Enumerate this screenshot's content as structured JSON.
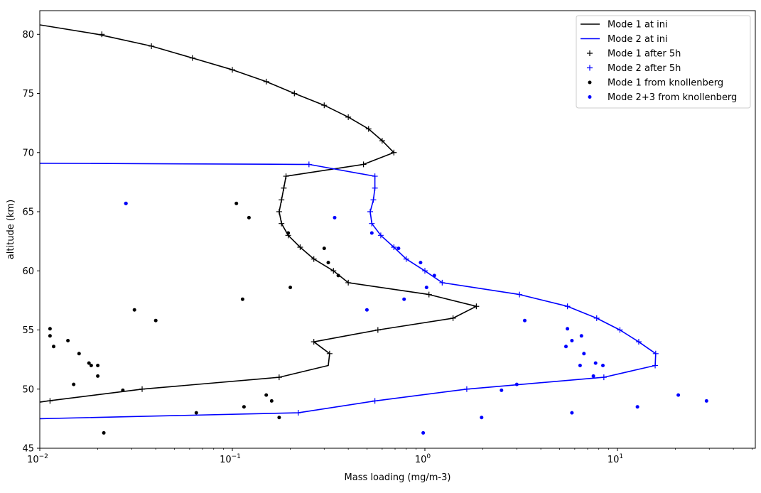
{
  "chart_data": {
    "type": "line",
    "xlabel": "Mass loading (mg/m-3)",
    "ylabel": "altitude (km)",
    "xscale": "log",
    "xlim": [
      0.01,
      52
    ],
    "ylim": [
      45,
      82
    ],
    "x_ticks": [
      {
        "value": 0.01,
        "base": "10",
        "exp": "−2"
      },
      {
        "value": 0.1,
        "base": "10",
        "exp": "−1"
      },
      {
        "value": 1,
        "base": "10",
        "exp": "0"
      },
      {
        "value": 10,
        "base": "10",
        "exp": "1"
      }
    ],
    "y_ticks": [
      45,
      50,
      55,
      60,
      65,
      70,
      75,
      80
    ],
    "grid": false,
    "legend_position": "top-right",
    "series": [
      {
        "name": "Mode 1 at ini",
        "kind": "line",
        "color": "#000000",
        "points": [
          [
            0.01,
            80.8
          ],
          [
            0.02,
            80
          ],
          [
            0.038,
            79
          ],
          [
            0.062,
            78
          ],
          [
            0.1,
            77
          ],
          [
            0.15,
            76
          ],
          [
            0.21,
            75
          ],
          [
            0.3,
            74
          ],
          [
            0.4,
            73
          ],
          [
            0.51,
            72
          ],
          [
            0.6,
            71
          ],
          [
            0.69,
            70
          ],
          [
            0.48,
            69
          ],
          [
            0.19,
            68
          ],
          [
            0.185,
            67
          ],
          [
            0.18,
            66
          ],
          [
            0.175,
            65
          ],
          [
            0.18,
            64
          ],
          [
            0.195,
            63
          ],
          [
            0.225,
            62
          ],
          [
            0.265,
            61
          ],
          [
            0.335,
            60
          ],
          [
            0.4,
            59
          ],
          [
            1.05,
            58
          ],
          [
            1.85,
            57
          ],
          [
            1.4,
            56
          ],
          [
            0.57,
            55
          ],
          [
            0.265,
            54
          ],
          [
            0.32,
            53
          ],
          [
            0.315,
            52
          ],
          [
            0.175,
            51
          ],
          [
            0.034,
            50
          ],
          [
            0.011,
            49
          ],
          [
            0.01,
            48.9
          ]
        ]
      },
      {
        "name": "Mode 2 at ini",
        "kind": "line",
        "color": "#0000ff",
        "points": [
          [
            0.01,
            69.1
          ],
          [
            0.22,
            69
          ],
          [
            0.25,
            69
          ],
          [
            0.55,
            68
          ],
          [
            0.55,
            67
          ],
          [
            0.54,
            66
          ],
          [
            0.52,
            65
          ],
          [
            0.53,
            64
          ],
          [
            0.59,
            63
          ],
          [
            0.69,
            62
          ],
          [
            0.8,
            61
          ],
          [
            1.0,
            60
          ],
          [
            1.23,
            59
          ],
          [
            3.1,
            58
          ],
          [
            5.5,
            57
          ],
          [
            7.8,
            56
          ],
          [
            10.3,
            55
          ],
          [
            12.9,
            54
          ],
          [
            15.8,
            53
          ],
          [
            15.7,
            52
          ],
          [
            8.5,
            51
          ],
          [
            1.65,
            50
          ],
          [
            0.55,
            49
          ],
          [
            0.22,
            48
          ],
          [
            0.01,
            47.5
          ]
        ]
      },
      {
        "name": "Mode 1 after 5h",
        "kind": "plus",
        "color": "#000000",
        "points": [
          [
            0.021,
            80
          ],
          [
            0.038,
            79
          ],
          [
            0.062,
            78
          ],
          [
            0.1,
            77
          ],
          [
            0.15,
            76
          ],
          [
            0.21,
            75
          ],
          [
            0.3,
            74
          ],
          [
            0.4,
            73
          ],
          [
            0.51,
            72
          ],
          [
            0.6,
            71
          ],
          [
            0.69,
            70
          ],
          [
            0.48,
            69
          ],
          [
            0.19,
            68
          ],
          [
            0.185,
            67
          ],
          [
            0.18,
            66
          ],
          [
            0.175,
            65
          ],
          [
            0.18,
            64
          ],
          [
            0.195,
            63
          ],
          [
            0.225,
            62
          ],
          [
            0.265,
            61
          ],
          [
            0.335,
            60
          ],
          [
            0.4,
            59
          ],
          [
            1.05,
            58
          ],
          [
            1.85,
            57
          ],
          [
            1.4,
            56
          ],
          [
            0.57,
            55
          ],
          [
            0.265,
            54
          ],
          [
            0.32,
            53
          ],
          [
            0.175,
            51
          ],
          [
            0.034,
            50
          ],
          [
            0.0113,
            49
          ]
        ]
      },
      {
        "name": "Mode 2 after 5h",
        "kind": "plus",
        "color": "#0000ff",
        "points": [
          [
            0.25,
            69
          ],
          [
            0.55,
            68
          ],
          [
            0.55,
            67
          ],
          [
            0.54,
            66
          ],
          [
            0.52,
            65
          ],
          [
            0.53,
            64
          ],
          [
            0.59,
            63
          ],
          [
            0.69,
            62
          ],
          [
            0.8,
            61
          ],
          [
            1.0,
            60
          ],
          [
            1.23,
            59
          ],
          [
            3.1,
            58
          ],
          [
            5.5,
            57
          ],
          [
            7.8,
            56
          ],
          [
            10.3,
            55
          ],
          [
            12.9,
            54
          ],
          [
            15.8,
            53
          ],
          [
            15.7,
            52
          ],
          [
            8.5,
            51
          ],
          [
            1.65,
            50
          ],
          [
            0.55,
            49
          ],
          [
            0.22,
            48
          ]
        ]
      },
      {
        "name": "Mode 1 from knollenberg",
        "kind": "dot",
        "color": "#000000",
        "points": [
          [
            0.028,
            65.7
          ],
          [
            0.105,
            65.7
          ],
          [
            0.122,
            64.5
          ],
          [
            0.195,
            63.2
          ],
          [
            0.3,
            61.9
          ],
          [
            0.315,
            60.7
          ],
          [
            0.355,
            59.6
          ],
          [
            0.2,
            58.6
          ],
          [
            0.113,
            57.6
          ],
          [
            0.031,
            56.7
          ],
          [
            0.04,
            55.8
          ],
          [
            0.0113,
            55.1
          ],
          [
            0.0113,
            54.5
          ],
          [
            0.014,
            54.1
          ],
          [
            0.0118,
            53.6
          ],
          [
            0.016,
            53.0
          ],
          [
            0.018,
            52.2
          ],
          [
            0.0185,
            52.0
          ],
          [
            0.02,
            52.0
          ],
          [
            0.02,
            51.1
          ],
          [
            0.015,
            50.4
          ],
          [
            0.027,
            49.9
          ],
          [
            0.15,
            49.5
          ],
          [
            0.16,
            49.0
          ],
          [
            0.115,
            48.5
          ],
          [
            0.065,
            48.0
          ],
          [
            0.175,
            47.6
          ],
          [
            0.0215,
            46.3
          ]
        ]
      },
      {
        "name": "Mode 2+3 from knollenberg",
        "kind": "dot",
        "color": "#0000ff",
        "points": [
          [
            0.028,
            65.7
          ],
          [
            0.34,
            64.5
          ],
          [
            0.53,
            63.2
          ],
          [
            0.73,
            61.9
          ],
          [
            0.95,
            60.7
          ],
          [
            1.12,
            59.6
          ],
          [
            1.02,
            58.6
          ],
          [
            0.78,
            57.6
          ],
          [
            0.5,
            56.7
          ],
          [
            3.3,
            55.8
          ],
          [
            5.5,
            55.1
          ],
          [
            6.5,
            54.5
          ],
          [
            5.8,
            54.1
          ],
          [
            5.4,
            53.6
          ],
          [
            6.7,
            53.0
          ],
          [
            7.7,
            52.2
          ],
          [
            6.4,
            52.0
          ],
          [
            8.4,
            52.0
          ],
          [
            7.5,
            51.1
          ],
          [
            3.0,
            50.4
          ],
          [
            2.5,
            49.9
          ],
          [
            20.7,
            49.5
          ],
          [
            29.0,
            49.0
          ],
          [
            12.7,
            48.5
          ],
          [
            5.8,
            48.0
          ],
          [
            1.97,
            47.6
          ],
          [
            0.98,
            46.3
          ]
        ]
      }
    ]
  }
}
